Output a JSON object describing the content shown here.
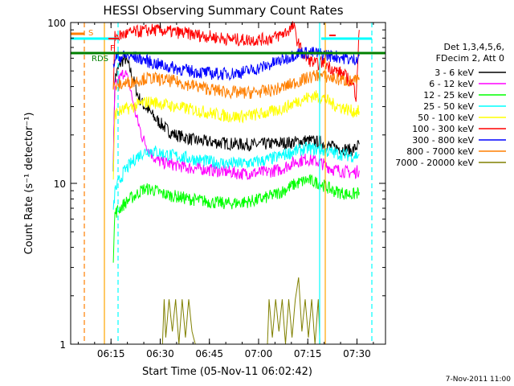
{
  "chart_data": {
    "type": "line",
    "title": "HESSI Observing Summary Count Rates",
    "xlabel": "Start Time (05-Nov-11 06:02:42)",
    "ylabel": "Count Rate (s⁻¹ detector⁻¹)",
    "yscale": "log",
    "ylim": [
      1,
      100
    ],
    "xlim": [
      0,
      96
    ],
    "x_unit": "minutes after 06:02:42",
    "x_ticks": [
      {
        "label": "06:15",
        "t": 12.3
      },
      {
        "label": "06:30",
        "t": 27.3
      },
      {
        "label": "06:45",
        "t": 42.3
      },
      {
        "label": "07:00",
        "t": 57.3
      },
      {
        "label": "07:15",
        "t": 72.3
      },
      {
        "label": "07:30",
        "t": 87.3
      }
    ],
    "y_ticks": [
      {
        "label": "1",
        "v": 1
      },
      {
        "label": "10",
        "v": 10
      },
      {
        "label": "100",
        "v": 100
      }
    ],
    "legend": {
      "position": "right",
      "header": [
        "Det 1,3,4,5,6,",
        "FDecim 2, Att 0"
      ]
    },
    "footer_date": "7-Nov-2011 11:00",
    "flags": [
      {
        "label": "S",
        "color": "#ff7f00"
      },
      {
        "label": "F",
        "color": "#ff0000"
      },
      {
        "label": "RDS",
        "color": "#008000"
      }
    ],
    "series": [
      {
        "name": "3 - 6 keV",
        "color": "#000000",
        "points": [
          [
            13,
            13
          ],
          [
            13.5,
            45
          ],
          [
            15,
            55
          ],
          [
            16.5,
            60
          ],
          [
            17.5,
            55
          ],
          [
            19,
            45
          ],
          [
            20.5,
            35
          ],
          [
            22,
            31
          ],
          [
            24,
            28
          ],
          [
            26,
            25
          ],
          [
            28,
            23
          ],
          [
            30,
            21
          ],
          [
            32,
            20
          ],
          [
            34,
            19.5
          ],
          [
            36,
            19
          ],
          [
            38,
            18.5
          ],
          [
            40,
            18.3
          ],
          [
            44,
            18
          ],
          [
            48,
            17.7
          ],
          [
            52,
            17.5
          ],
          [
            56,
            17.4
          ],
          [
            60,
            17.6
          ],
          [
            64,
            17.8
          ],
          [
            68,
            18
          ],
          [
            72,
            18.5
          ],
          [
            76,
            18
          ],
          [
            79,
            17
          ],
          [
            82,
            16.5
          ],
          [
            86,
            16
          ],
          [
            88,
            17.5
          ]
        ]
      },
      {
        "name": "6 - 12 keV",
        "color": "#ff00ff",
        "points": [
          [
            13,
            14
          ],
          [
            13.5,
            40
          ],
          [
            15,
            45
          ],
          [
            16.5,
            50
          ],
          [
            18,
            40
          ],
          [
            20,
            26
          ],
          [
            22,
            19
          ],
          [
            24,
            16
          ],
          [
            26,
            14
          ],
          [
            28,
            13.5
          ],
          [
            32,
            13
          ],
          [
            36,
            12.5
          ],
          [
            40,
            12.3
          ],
          [
            44,
            12
          ],
          [
            48,
            11.8
          ],
          [
            52,
            11.5
          ],
          [
            56,
            11.6
          ],
          [
            60,
            11.8
          ],
          [
            64,
            12.2
          ],
          [
            68,
            13.5
          ],
          [
            72,
            14.2
          ],
          [
            76,
            13.5
          ],
          [
            80,
            12.2
          ],
          [
            84,
            11.8
          ],
          [
            86,
            11.6
          ],
          [
            88,
            12
          ]
        ]
      },
      {
        "name": "12 - 25 keV",
        "color": "#00ff00",
        "points": [
          [
            13,
            3.5
          ],
          [
            13.5,
            6.5
          ],
          [
            15,
            7
          ],
          [
            16.5,
            7.5
          ],
          [
            18,
            8
          ],
          [
            20,
            8.5
          ],
          [
            22,
            9.2
          ],
          [
            24,
            9.2
          ],
          [
            26,
            9
          ],
          [
            28,
            8.6
          ],
          [
            32,
            8.3
          ],
          [
            36,
            8
          ],
          [
            40,
            7.8
          ],
          [
            44,
            7.6
          ],
          [
            48,
            7.5
          ],
          [
            52,
            7.6
          ],
          [
            56,
            7.8
          ],
          [
            60,
            8.2
          ],
          [
            64,
            8.8
          ],
          [
            68,
            9.8
          ],
          [
            72,
            10.5
          ],
          [
            76,
            10
          ],
          [
            80,
            9
          ],
          [
            84,
            8.6
          ],
          [
            86,
            8.5
          ],
          [
            88,
            8.8
          ]
        ]
      },
      {
        "name": "25 - 50 keV",
        "color": "#00ffff",
        "points": [
          [
            13,
            6.5
          ],
          [
            13.5,
            9
          ],
          [
            15,
            10.5
          ],
          [
            16.5,
            12
          ],
          [
            18,
            13
          ],
          [
            20,
            14.5
          ],
          [
            22,
            15.5
          ],
          [
            24,
            16
          ],
          [
            26,
            15.8
          ],
          [
            28,
            15.3
          ],
          [
            32,
            14.8
          ],
          [
            36,
            14.3
          ],
          [
            40,
            13.9
          ],
          [
            44,
            13.5
          ],
          [
            48,
            13.3
          ],
          [
            52,
            13.3
          ],
          [
            56,
            13.5
          ],
          [
            60,
            14
          ],
          [
            64,
            14.8
          ],
          [
            68,
            15.8
          ],
          [
            72,
            16.5
          ],
          [
            76,
            16.2
          ],
          [
            80,
            15.5
          ],
          [
            84,
            15
          ],
          [
            86,
            14.8
          ],
          [
            88,
            15
          ]
        ]
      },
      {
        "name": "50 - 100 keV",
        "color": "#ffff00",
        "points": [
          [
            13,
            11
          ],
          [
            13.5,
            27
          ],
          [
            15,
            28
          ],
          [
            17,
            29
          ],
          [
            19,
            30
          ],
          [
            21,
            31
          ],
          [
            23,
            32
          ],
          [
            25,
            32
          ],
          [
            27,
            31.5
          ],
          [
            30,
            30.5
          ],
          [
            34,
            29.5
          ],
          [
            38,
            28.5
          ],
          [
            42,
            27.5
          ],
          [
            46,
            26.5
          ],
          [
            50,
            26
          ],
          [
            54,
            26.3
          ],
          [
            58,
            27
          ],
          [
            62,
            28
          ],
          [
            66,
            30
          ],
          [
            70,
            33
          ],
          [
            74,
            35
          ],
          [
            77,
            34
          ],
          [
            80,
            31
          ],
          [
            84,
            29
          ],
          [
            86,
            28
          ],
          [
            88,
            28
          ]
        ]
      },
      {
        "name": "100 - 300 keV",
        "color": "#ff0000",
        "points": [
          [
            13,
            38
          ],
          [
            13.5,
            82
          ],
          [
            15,
            83
          ],
          [
            17,
            85
          ],
          [
            19,
            87
          ],
          [
            21,
            88
          ],
          [
            23,
            89
          ],
          [
            25,
            90
          ],
          [
            28,
            89
          ],
          [
            32,
            87
          ],
          [
            36,
            85
          ],
          [
            40,
            83
          ],
          [
            44,
            81
          ],
          [
            48,
            79
          ],
          [
            52,
            78
          ],
          [
            56,
            78
          ],
          [
            60,
            79
          ],
          [
            63,
            82
          ],
          [
            66,
            88
          ],
          [
            68,
            95
          ],
          [
            69,
            78
          ],
          [
            71,
            62
          ],
          [
            73,
            58
          ],
          [
            75,
            55
          ],
          [
            77,
            57
          ],
          [
            80,
            51
          ],
          [
            83,
            48
          ],
          [
            86,
            42
          ],
          [
            87,
            35
          ],
          [
            88,
            90
          ]
        ]
      },
      {
        "name": "300 - 800 keV",
        "color": "#0000ff",
        "points": [
          [
            13,
            52
          ],
          [
            13.5,
            60
          ],
          [
            15,
            61
          ],
          [
            17,
            62
          ],
          [
            19,
            61
          ],
          [
            21,
            60
          ],
          [
            23,
            58
          ],
          [
            25,
            56
          ],
          [
            28,
            54
          ],
          [
            32,
            52
          ],
          [
            36,
            50
          ],
          [
            40,
            49
          ],
          [
            44,
            48
          ],
          [
            48,
            48
          ],
          [
            52,
            49
          ],
          [
            56,
            51
          ],
          [
            60,
            54
          ],
          [
            62,
            56
          ],
          [
            64,
            58
          ],
          [
            66,
            60
          ],
          [
            68,
            63
          ],
          [
            70,
            65
          ],
          [
            73,
            65
          ],
          [
            76,
            64
          ],
          [
            80,
            62
          ],
          [
            84,
            60
          ],
          [
            86,
            58
          ],
          [
            88,
            62
          ]
        ]
      },
      {
        "name": "800 - 7000 keV",
        "color": "#ff7f00",
        "points": [
          [
            13,
            40
          ],
          [
            13.5,
            40
          ],
          [
            15,
            41
          ],
          [
            17,
            42
          ],
          [
            19,
            43
          ],
          [
            21,
            44
          ],
          [
            23,
            45
          ],
          [
            25,
            45
          ],
          [
            28,
            44
          ],
          [
            32,
            43
          ],
          [
            36,
            41
          ],
          [
            40,
            39.5
          ],
          [
            44,
            38
          ],
          [
            48,
            37
          ],
          [
            52,
            36.5
          ],
          [
            56,
            36.8
          ],
          [
            60,
            37.5
          ],
          [
            64,
            39
          ],
          [
            68,
            42
          ],
          [
            72,
            45
          ],
          [
            75,
            47
          ],
          [
            78,
            46
          ],
          [
            82,
            44
          ],
          [
            86,
            43
          ],
          [
            88,
            44
          ]
        ]
      },
      {
        "name": "7000 - 20000 keV",
        "color": "#808000",
        "points": [
          [
            28,
            1
          ],
          [
            28.5,
            1.9
          ],
          [
            29,
            1.1
          ],
          [
            30,
            1.9
          ],
          [
            31,
            1.2
          ],
          [
            32,
            1.9
          ],
          [
            33,
            1
          ],
          [
            34,
            1.9
          ],
          [
            35,
            1.1
          ],
          [
            36,
            1.9
          ],
          [
            37,
            1.2
          ],
          [
            38,
            1
          ],
          [
            60,
            1
          ],
          [
            60.5,
            1.9
          ],
          [
            61.5,
            1.1
          ],
          [
            62.5,
            1.9
          ],
          [
            63.5,
            1.2
          ],
          [
            64.5,
            1.9
          ],
          [
            65.5,
            1
          ],
          [
            66.5,
            1.9
          ],
          [
            67.5,
            1.1
          ],
          [
            68.5,
            1.9
          ],
          [
            69.5,
            2.6
          ],
          [
            70.5,
            1.2
          ],
          [
            71.5,
            1.9
          ],
          [
            72.5,
            1.1
          ],
          [
            73.5,
            1.9
          ],
          [
            74.5,
            1
          ],
          [
            75.5,
            1.9
          ],
          [
            76,
            1
          ]
        ]
      }
    ]
  }
}
